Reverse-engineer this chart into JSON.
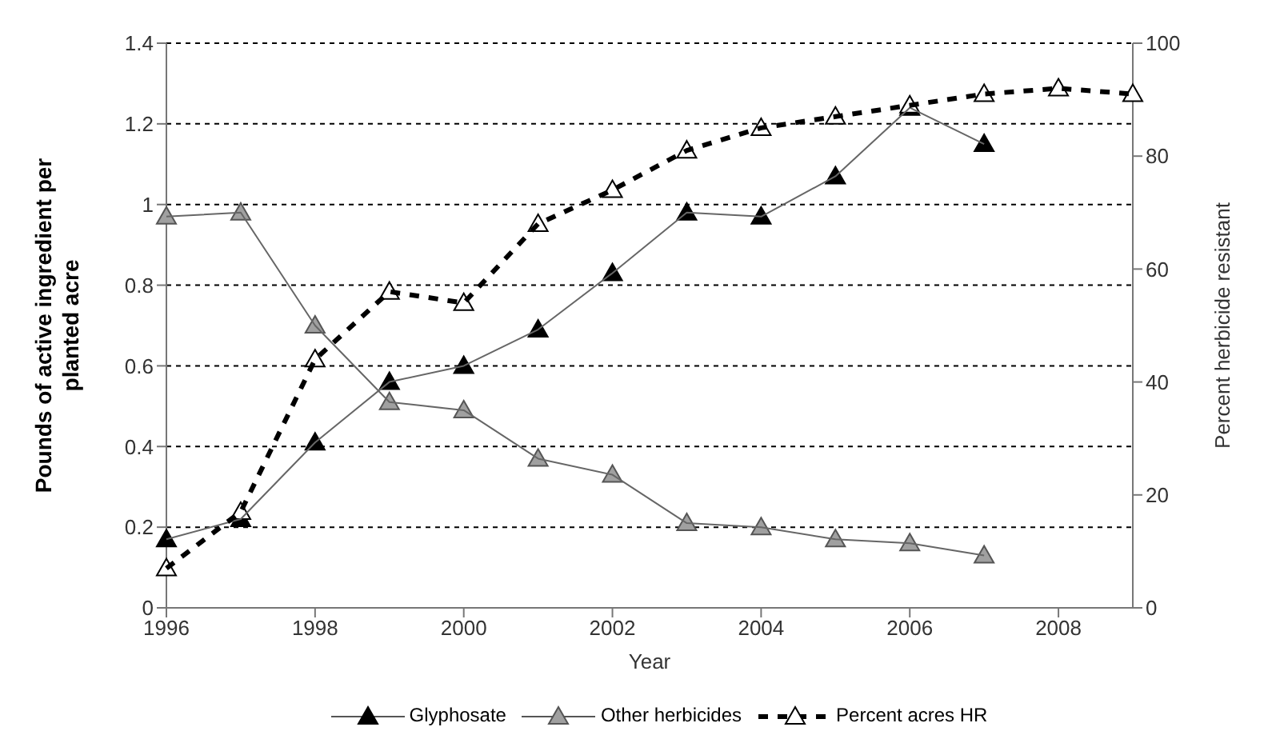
{
  "chart_data": {
    "type": "line",
    "xlabel": "Year",
    "ylabel": "Pounds of active ingredient per planted acre",
    "y2label": "Percent herbicide resistant",
    "x": [
      1996,
      1997,
      1998,
      1999,
      2000,
      2001,
      2002,
      2003,
      2004,
      2005,
      2006,
      2007
    ],
    "series": [
      {
        "name": "Glyphosate",
        "color": "#000000",
        "line_style": "solid",
        "values": [
          0.17,
          0.22,
          0.41,
          0.56,
          0.6,
          0.69,
          0.83,
          0.98,
          0.97,
          1.07,
          1.24,
          1.15
        ]
      },
      {
        "name": "Other herbicides",
        "color": "#a0a0a0",
        "line_style": "solid",
        "values": [
          0.97,
          0.98,
          0.7,
          0.51,
          0.49,
          0.37,
          0.33,
          0.21,
          0.2,
          0.17,
          0.16,
          0.13
        ]
      },
      {
        "name": "Percent acres HR",
        "color": "#000000",
        "line_style": "dashed",
        "axis": "y2",
        "x": [
          1996,
          1997,
          1998,
          1999,
          2000,
          2001,
          2002,
          2003,
          2004,
          2005,
          2006,
          2007,
          2008,
          2009
        ],
        "values": [
          7,
          17,
          44,
          56,
          54,
          68,
          74,
          81,
          85,
          87,
          89,
          91,
          92,
          91
        ]
      }
    ],
    "xlim": [
      1996,
      2009
    ],
    "xticks": [
      1996,
      1998,
      2000,
      2002,
      2004,
      2006,
      2008
    ],
    "ylim": [
      0,
      1.4
    ],
    "yticks": [
      0,
      0.2,
      0.4,
      0.6,
      0.8,
      1,
      1.2,
      1.4
    ],
    "y2lim": [
      0,
      100
    ],
    "y2ticks": [
      0,
      20,
      40,
      60,
      80,
      100
    ],
    "grid": "y",
    "legend": "bottom",
    "marker": "triangle"
  }
}
